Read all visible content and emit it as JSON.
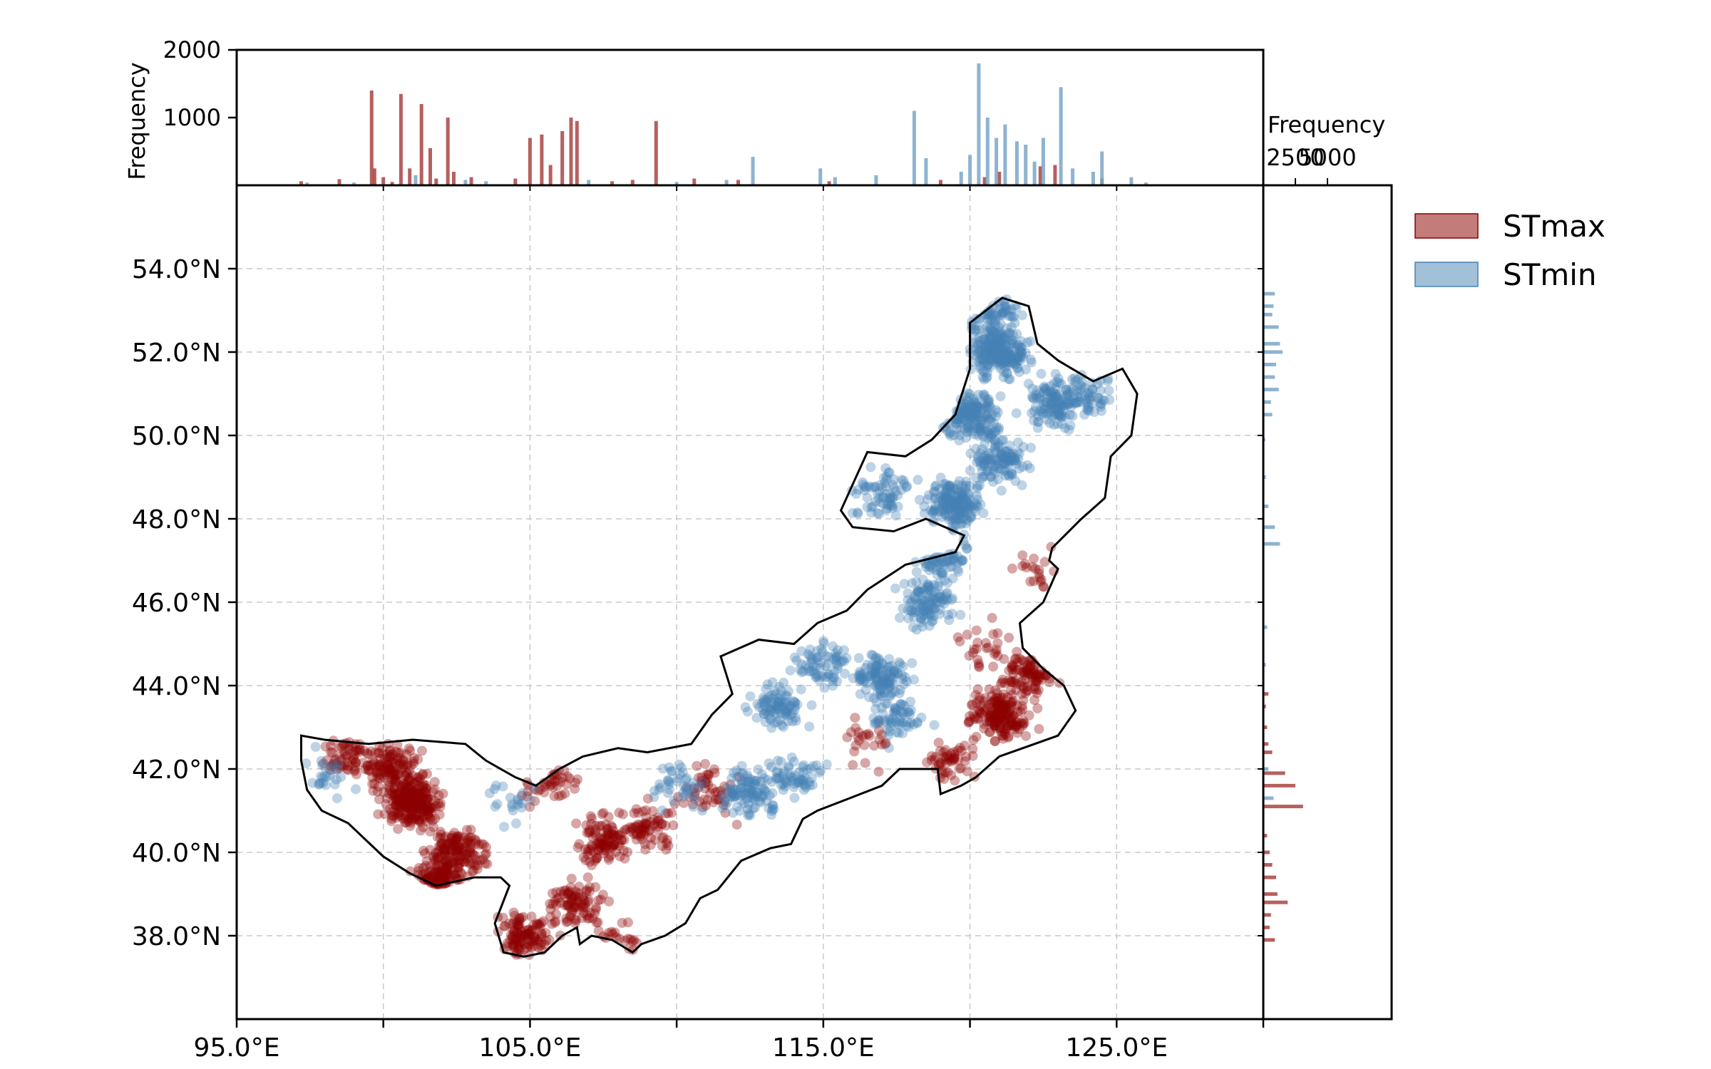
{
  "chart_data": {
    "type": "scatter",
    "xlim": [
      95,
      130
    ],
    "ylim": [
      36,
      56
    ],
    "grid": true,
    "legend_placement": "right-top",
    "xticks": [
      {
        "value": 95,
        "label": "95.0°E"
      },
      {
        "value": 100,
        "label": ""
      },
      {
        "value": 105,
        "label": "105.0°E"
      },
      {
        "value": 110,
        "label": ""
      },
      {
        "value": 115,
        "label": "115.0°E"
      },
      {
        "value": 120,
        "label": ""
      },
      {
        "value": 125,
        "label": "125.0°E"
      },
      {
        "value": 130,
        "label": ""
      }
    ],
    "yticks": [
      {
        "value": 38,
        "label": "38.0°N"
      },
      {
        "value": 40,
        "label": "40.0°N"
      },
      {
        "value": 42,
        "label": "42.0°N"
      },
      {
        "value": 44,
        "label": "44.0°N"
      },
      {
        "value": 46,
        "label": "46.0°N"
      },
      {
        "value": 48,
        "label": "48.0°N"
      },
      {
        "value": 50,
        "label": "50.0°N"
      },
      {
        "value": 52,
        "label": "52.0°N"
      },
      {
        "value": 54,
        "label": "54.0°N"
      }
    ],
    "series": [
      {
        "name": "STmax",
        "color": "#8b0000",
        "hist_color": "#a94442",
        "clusters": [
          [
            101.0,
            41.2,
            260
          ],
          [
            100.2,
            42.0,
            120
          ],
          [
            102.5,
            40.0,
            160
          ],
          [
            98.8,
            42.3,
            60
          ],
          [
            101.8,
            39.0,
            90
          ],
          [
            104.8,
            38.0,
            110
          ],
          [
            106.5,
            38.8,
            90
          ],
          [
            107.5,
            40.3,
            100
          ],
          [
            109.0,
            40.6,
            70
          ],
          [
            111.0,
            41.5,
            50
          ],
          [
            121.0,
            43.3,
            180
          ],
          [
            122.0,
            44.3,
            90
          ],
          [
            119.3,
            42.2,
            50
          ],
          [
            120.5,
            45.0,
            25
          ],
          [
            105.5,
            41.8,
            40
          ],
          [
            108.0,
            38.0,
            20
          ],
          [
            116.5,
            42.7,
            25
          ],
          [
            122.5,
            46.7,
            20
          ]
        ]
      },
      {
        "name": "STmin",
        "color": "#4682b4",
        "hist_color": "#7aa6c8",
        "clusters": [
          [
            121.0,
            52.0,
            240
          ],
          [
            120.0,
            50.5,
            160
          ],
          [
            122.8,
            50.8,
            120
          ],
          [
            119.5,
            48.4,
            180
          ],
          [
            121.0,
            49.4,
            120
          ],
          [
            117.0,
            48.6,
            70
          ],
          [
            118.6,
            46.0,
            110
          ],
          [
            117.0,
            44.2,
            120
          ],
          [
            115.0,
            44.5,
            70
          ],
          [
            113.5,
            43.5,
            90
          ],
          [
            112.5,
            41.5,
            100
          ],
          [
            114.0,
            41.8,
            60
          ],
          [
            110.0,
            41.5,
            40
          ],
          [
            117.5,
            43.2,
            60
          ],
          [
            119.0,
            47.2,
            60
          ],
          [
            124.0,
            51.0,
            60
          ],
          [
            120.8,
            53.0,
            60
          ],
          [
            98.0,
            41.8,
            25
          ],
          [
            101.2,
            38.6,
            15
          ],
          [
            104.5,
            41.2,
            20
          ]
        ]
      }
    ],
    "top_hist": {
      "ylabel": "Frequency",
      "ylim": [
        0,
        2000
      ],
      "yticks": [
        {
          "value": 1000,
          "label": "1000"
        },
        {
          "value": 2000,
          "label": "2000"
        }
      ],
      "STmax": [
        [
          97.2,
          60
        ],
        [
          98.5,
          90
        ],
        [
          99.6,
          1400
        ],
        [
          99.7,
          250
        ],
        [
          100.0,
          120
        ],
        [
          100.3,
          50
        ],
        [
          100.6,
          1350
        ],
        [
          100.9,
          250
        ],
        [
          101.3,
          1200
        ],
        [
          101.6,
          550
        ],
        [
          101.8,
          100
        ],
        [
          102.2,
          1000
        ],
        [
          102.4,
          200
        ],
        [
          103.0,
          120
        ],
        [
          104.5,
          100
        ],
        [
          105.0,
          700
        ],
        [
          105.4,
          750
        ],
        [
          105.7,
          300
        ],
        [
          106.1,
          800
        ],
        [
          106.4,
          1000
        ],
        [
          106.6,
          950
        ],
        [
          107.8,
          60
        ],
        [
          108.5,
          80
        ],
        [
          109.3,
          950
        ],
        [
          110.6,
          100
        ],
        [
          112.1,
          80
        ],
        [
          115.2,
          60
        ],
        [
          119.0,
          80
        ],
        [
          120.5,
          120
        ],
        [
          121.0,
          200
        ],
        [
          122.4,
          280
        ],
        [
          122.9,
          300
        ],
        [
          124.5,
          100
        ]
      ],
      "STmin": [
        [
          97.4,
          40
        ],
        [
          99.0,
          40
        ],
        [
          101.1,
          150
        ],
        [
          102.8,
          80
        ],
        [
          103.5,
          60
        ],
        [
          107.0,
          80
        ],
        [
          110.0,
          50
        ],
        [
          111.7,
          80
        ],
        [
          112.6,
          420
        ],
        [
          114.9,
          250
        ],
        [
          115.4,
          120
        ],
        [
          116.8,
          150
        ],
        [
          118.1,
          1100
        ],
        [
          118.5,
          400
        ],
        [
          119.7,
          200
        ],
        [
          120.0,
          450
        ],
        [
          120.3,
          1800
        ],
        [
          120.6,
          1000
        ],
        [
          120.9,
          700
        ],
        [
          121.2,
          900
        ],
        [
          121.6,
          650
        ],
        [
          121.9,
          600
        ],
        [
          122.2,
          350
        ],
        [
          122.5,
          700
        ],
        [
          123.1,
          1450
        ],
        [
          123.5,
          250
        ],
        [
          124.2,
          200
        ],
        [
          124.5,
          500
        ],
        [
          125.5,
          120
        ],
        [
          126.0,
          40
        ]
      ]
    },
    "right_hist": {
      "xlabel": "Frequency",
      "xlim": [
        0,
        10000
      ],
      "xticks": [
        {
          "value": 2500,
          "label": "2500"
        },
        {
          "value": 5000,
          "label": "5000"
        }
      ],
      "STmax": [
        [
          37.9,
          900
        ],
        [
          38.2,
          500
        ],
        [
          38.5,
          600
        ],
        [
          38.8,
          1900
        ],
        [
          39.0,
          1100
        ],
        [
          39.4,
          1000
        ],
        [
          39.7,
          700
        ],
        [
          40.0,
          500
        ],
        [
          40.4,
          300
        ],
        [
          41.1,
          3100
        ],
        [
          41.6,
          2500
        ],
        [
          41.9,
          1700
        ],
        [
          42.4,
          700
        ],
        [
          42.6,
          400
        ],
        [
          43.0,
          300
        ],
        [
          43.5,
          200
        ],
        [
          43.8,
          400
        ]
      ],
      "STmin": [
        [
          41.3,
          800
        ],
        [
          42.0,
          400
        ],
        [
          44.5,
          200
        ],
        [
          45.4,
          300
        ],
        [
          47.4,
          1300
        ],
        [
          47.8,
          900
        ],
        [
          48.3,
          400
        ],
        [
          49.0,
          200
        ],
        [
          49.9,
          150
        ],
        [
          50.5,
          700
        ],
        [
          50.8,
          600
        ],
        [
          51.1,
          1200
        ],
        [
          51.4,
          900
        ],
        [
          51.7,
          1000
        ],
        [
          52.0,
          1500
        ],
        [
          52.2,
          1300
        ],
        [
          52.6,
          1200
        ],
        [
          52.9,
          700
        ],
        [
          53.1,
          800
        ],
        [
          53.4,
          900
        ]
      ]
    },
    "boundary": [
      [
        97.2,
        42.8
      ],
      [
        98.0,
        42.7
      ],
      [
        99.5,
        42.6
      ],
      [
        101.0,
        42.7
      ],
      [
        102.8,
        42.6
      ],
      [
        103.5,
        42.2
      ],
      [
        104.5,
        41.8
      ],
      [
        105.2,
        41.6
      ],
      [
        106.0,
        42.0
      ],
      [
        106.8,
        42.3
      ],
      [
        108.0,
        42.5
      ],
      [
        109.0,
        42.4
      ],
      [
        110.5,
        42.6
      ],
      [
        111.2,
        43.3
      ],
      [
        111.9,
        43.8
      ],
      [
        111.5,
        44.7
      ],
      [
        112.8,
        45.1
      ],
      [
        114.0,
        45.0
      ],
      [
        114.8,
        45.5
      ],
      [
        115.8,
        45.8
      ],
      [
        116.5,
        46.3
      ],
      [
        117.8,
        46.9
      ],
      [
        119.5,
        47.2
      ],
      [
        119.8,
        47.6
      ],
      [
        118.5,
        48.0
      ],
      [
        117.4,
        47.7
      ],
      [
        116.0,
        47.8
      ],
      [
        115.6,
        48.2
      ],
      [
        116.5,
        49.6
      ],
      [
        117.8,
        49.5
      ],
      [
        118.7,
        49.9
      ],
      [
        119.5,
        50.5
      ],
      [
        120.0,
        51.6
      ],
      [
        120.0,
        52.7
      ],
      [
        121.1,
        53.3
      ],
      [
        122.0,
        53.1
      ],
      [
        122.3,
        52.2
      ],
      [
        123.0,
        51.8
      ],
      [
        124.2,
        51.3
      ],
      [
        125.2,
        51.6
      ],
      [
        125.7,
        51.0
      ],
      [
        125.5,
        50.0
      ],
      [
        124.8,
        49.5
      ],
      [
        124.6,
        48.5
      ],
      [
        123.8,
        48.0
      ],
      [
        122.8,
        47.3
      ],
      [
        122.7,
        47.0
      ],
      [
        123.0,
        46.8
      ],
      [
        122.5,
        46.0
      ],
      [
        121.7,
        45.5
      ],
      [
        121.8,
        44.9
      ],
      [
        122.5,
        44.4
      ],
      [
        123.2,
        44.0
      ],
      [
        123.6,
        43.4
      ],
      [
        123.0,
        42.8
      ],
      [
        121.8,
        42.5
      ],
      [
        121.0,
        42.3
      ],
      [
        120.2,
        41.8
      ],
      [
        119.7,
        41.6
      ],
      [
        119.0,
        41.4
      ],
      [
        118.9,
        42.0
      ],
      [
        117.6,
        42.0
      ],
      [
        117.0,
        41.6
      ],
      [
        115.9,
        41.3
      ],
      [
        114.8,
        41.0
      ],
      [
        114.3,
        40.8
      ],
      [
        113.9,
        40.2
      ],
      [
        113.2,
        40.1
      ],
      [
        112.2,
        39.8
      ],
      [
        111.4,
        39.1
      ],
      [
        110.8,
        38.9
      ],
      [
        110.3,
        38.3
      ],
      [
        109.6,
        38.0
      ],
      [
        108.8,
        37.8
      ],
      [
        108.5,
        37.6
      ],
      [
        107.8,
        37.9
      ],
      [
        107.1,
        38.0
      ],
      [
        106.7,
        37.8
      ],
      [
        106.6,
        38.2
      ],
      [
        106.1,
        38.0
      ],
      [
        105.5,
        37.6
      ],
      [
        104.8,
        37.5
      ],
      [
        104.1,
        37.6
      ],
      [
        103.8,
        38.3
      ],
      [
        104.3,
        39.2
      ],
      [
        104.0,
        39.4
      ],
      [
        103.1,
        39.4
      ],
      [
        101.8,
        39.2
      ],
      [
        100.9,
        39.5
      ],
      [
        100.0,
        39.9
      ],
      [
        99.4,
        40.3
      ],
      [
        98.8,
        40.7
      ],
      [
        97.9,
        41.0
      ],
      [
        97.4,
        41.5
      ],
      [
        97.2,
        42.2
      ],
      [
        97.2,
        42.8
      ]
    ],
    "legend": [
      "STmax",
      "STmin"
    ]
  }
}
